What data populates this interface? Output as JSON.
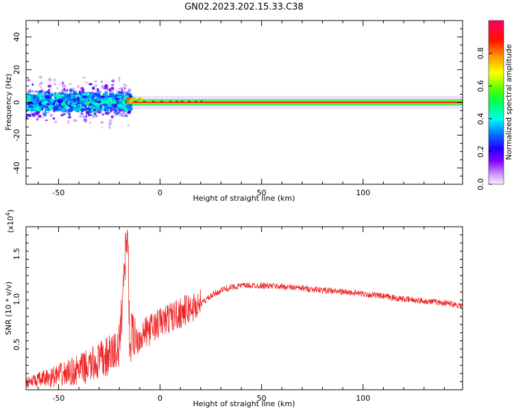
{
  "title": "GN02.2023.202.15.33.C38",
  "chart_data": [
    {
      "type": "heatmap",
      "xlabel": "Height of straight line (km)",
      "ylabel": "Frequency (Hz)",
      "xlim": [
        -66,
        149
      ],
      "ylim": [
        -50,
        50
      ],
      "xticks": [
        -50,
        0,
        50,
        100
      ],
      "yticks": [
        -40,
        -20,
        0,
        20,
        40
      ],
      "colorbar": {
        "label": "Normalized spectral amplitude",
        "range": [
          0,
          1
        ],
        "ticks": [
          0.0,
          0.2,
          0.4,
          0.6,
          0.8
        ],
        "tick_labels": [
          "0.0",
          "0.2",
          "0.4",
          "0.6",
          "0.8"
        ],
        "colors": [
          "#e8e0ff",
          "#9900ff",
          "#0000ff",
          "#00ccff",
          "#00ff66",
          "#66ff00",
          "#ffff00",
          "#ff6600",
          "#ff0000",
          "#ff0066"
        ]
      },
      "description_regions": [
        {
          "x_range": [
            -66,
            -15
          ],
          "freq_spread": [
            -20,
            20
          ],
          "level": 0.4
        },
        {
          "x_range": [
            -15,
            149
          ],
          "freq_spread": [
            -3,
            3
          ],
          "level": 0.85
        }
      ]
    },
    {
      "type": "line",
      "xlabel": "Height of straight line (km)",
      "ylabel": "SNR (10 * v/v)",
      "yscale_label": "(x10",
      "yscale_exp": "4",
      "yscale_close": ")",
      "xlim": [
        -66,
        149
      ],
      "ylim": [
        0,
        1.8
      ],
      "xticks": [
        -50,
        0,
        50,
        100
      ],
      "yticks": [
        0.5,
        1.0,
        1.5
      ],
      "ytick_labels": [
        "0.5",
        "1.0",
        "1.5"
      ],
      "color": "#ee2222",
      "series": [
        {
          "x": [
            -66,
            -55,
            -45,
            -35,
            -25,
            -20,
            -16,
            -15,
            -12,
            -8,
            -4,
            0,
            5,
            10,
            15,
            20,
            25,
            30,
            35,
            40,
            45,
            50,
            60,
            70,
            80,
            90,
            100,
            110,
            120,
            130,
            140,
            149
          ],
          "y": [
            0.06,
            0.1,
            0.14,
            0.2,
            0.3,
            0.4,
            1.8,
            0.45,
            0.55,
            0.62,
            0.68,
            0.74,
            0.8,
            0.85,
            0.9,
            0.95,
            1.03,
            1.1,
            1.13,
            1.15,
            1.15,
            1.15,
            1.14,
            1.12,
            1.1,
            1.08,
            1.06,
            1.03,
            1.0,
            0.98,
            0.96,
            0.93
          ]
        }
      ]
    }
  ]
}
